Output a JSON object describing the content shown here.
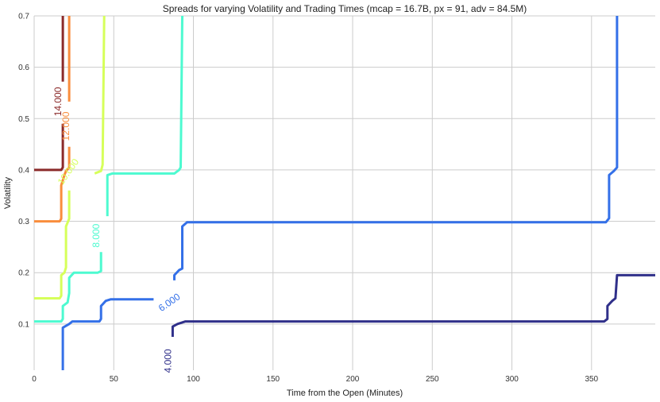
{
  "chart_data": {
    "type": "line",
    "title": "Spreads for varying Volatility and Trading Times (mcap = 16.7B, px = 91, adv = 84.5M)",
    "xlabel": "Time from the Open (Minutes)",
    "ylabel": "Volatility",
    "xlim": [
      0,
      390
    ],
    "ylim": [
      0.01,
      0.7
    ],
    "xticks": [
      0,
      50,
      100,
      150,
      200,
      250,
      300,
      350
    ],
    "yticks": [
      0.1,
      0.2,
      0.3,
      0.4,
      0.5,
      0.6,
      0.7
    ],
    "xtick_labels": [
      "0",
      "50",
      "100",
      "150",
      "200",
      "250",
      "300",
      "350"
    ],
    "ytick_labels": [
      "0.1",
      "0.2",
      "0.3",
      "0.4",
      "0.5",
      "0.6",
      "0.7"
    ],
    "grid": true,
    "series": [
      {
        "label": "4.000",
        "color": "#30308a",
        "label_at": [
          86,
          0.028
        ],
        "segments": [
          [
            [
              87,
              0.075
            ],
            [
              87,
              0.095
            ],
            [
              90,
              0.1
            ],
            [
              95,
              0.105
            ],
            [
              358,
              0.105
            ],
            [
              360,
              0.11
            ],
            [
              360,
              0.135
            ],
            [
              363,
              0.145
            ],
            [
              365,
              0.15
            ],
            [
              366,
              0.195
            ],
            [
              390,
              0.195
            ]
          ]
        ]
      },
      {
        "label": "6.000",
        "color": "#3470e8",
        "label_at": [
          86,
          0.137
        ],
        "segments": [
          [
            [
              18,
              0.01
            ],
            [
              18,
              0.093
            ],
            [
              22,
              0.1
            ],
            [
              24,
              0.105
            ],
            [
              41,
              0.105
            ],
            [
              42,
              0.11
            ],
            [
              42,
              0.135
            ],
            [
              45,
              0.145
            ],
            [
              48,
              0.148
            ],
            [
              75,
              0.148
            ]
          ],
          [
            [
              88,
              0.185
            ],
            [
              88,
              0.195
            ],
            [
              91,
              0.205
            ],
            [
              93,
              0.208
            ],
            [
              93,
              0.29
            ],
            [
              96,
              0.298
            ],
            [
              359,
              0.298
            ],
            [
              361,
              0.306
            ],
            [
              361,
              0.39
            ],
            [
              364,
              0.398
            ],
            [
              366,
              0.405
            ],
            [
              366,
              0.7
            ]
          ]
        ]
      },
      {
        "label": "8.000",
        "color": "#4dfad0",
        "label_at": [
          41,
          0.272
        ],
        "segments": [
          [
            [
              0,
              0.105
            ],
            [
              17,
              0.105
            ],
            [
              18,
              0.11
            ],
            [
              18,
              0.135
            ],
            [
              21,
              0.142
            ],
            [
              22,
              0.16
            ],
            [
              22,
              0.19
            ],
            [
              25,
              0.2
            ],
            [
              40,
              0.2
            ],
            [
              42,
              0.203
            ],
            [
              42,
              0.24
            ]
          ],
          [
            [
              46,
              0.31
            ],
            [
              46,
              0.39
            ],
            [
              49,
              0.393
            ],
            [
              88,
              0.393
            ],
            [
              91,
              0.4
            ],
            [
              92,
              0.405
            ],
            [
              93,
              0.7
            ]
          ]
        ]
      },
      {
        "label": "10.000",
        "color": "#d6ff5a",
        "label_at": [
          23,
          0.393
        ],
        "segments": [
          [
            [
              0,
              0.15
            ],
            [
              16,
              0.15
            ],
            [
              17,
              0.155
            ],
            [
              17,
              0.195
            ],
            [
              19,
              0.2
            ],
            [
              20,
              0.21
            ],
            [
              20,
              0.29
            ],
            [
              22,
              0.305
            ],
            [
              22,
              0.36
            ]
          ],
          [
            [
              38,
              0.393
            ],
            [
              42,
              0.398
            ],
            [
              43,
              0.41
            ],
            [
              44,
              0.7
            ]
          ]
        ]
      },
      {
        "label": "12.000",
        "color": "#f98d3c",
        "label_at": [
          22,
          0.485
        ],
        "segments": [
          [
            [
              0,
              0.3
            ],
            [
              16,
              0.3
            ],
            [
              17,
              0.305
            ],
            [
              17,
              0.37
            ],
            [
              19,
              0.39
            ],
            [
              20,
              0.398
            ],
            [
              22,
              0.405
            ],
            [
              22,
              0.445
            ]
          ],
          [
            [
              22,
              0.533
            ],
            [
              22,
              0.7
            ]
          ]
        ]
      },
      {
        "label": "14.000",
        "color": "#8b2a2a",
        "label_at": [
          17,
          0.533
        ],
        "segments": [
          [
            [
              0,
              0.4
            ],
            [
              17,
              0.4
            ],
            [
              18,
              0.405
            ],
            [
              18,
              0.49
            ]
          ],
          [
            [
              18,
              0.572
            ],
            [
              18,
              0.7
            ]
          ]
        ]
      }
    ]
  }
}
